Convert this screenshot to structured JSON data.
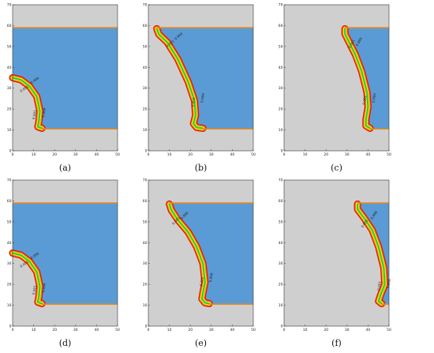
{
  "panels": [
    {
      "id": "a",
      "caption": "(a)",
      "curve": [
        [
          0,
          35
        ],
        [
          4,
          34
        ],
        [
          8,
          31
        ],
        [
          11.5,
          26
        ],
        [
          13,
          19
        ],
        [
          12.5,
          14
        ],
        [
          12,
          11.5
        ],
        [
          14,
          10.8
        ]
      ],
      "labels": [
        {
          "text": "0.999",
          "at": [
            9,
            32
          ],
          "rot": -35
        },
        {
          "text": "0.001",
          "at": [
            4,
            28
          ],
          "rot": -35
        },
        {
          "text": "0.999",
          "at": [
            15,
            16
          ],
          "rot": -80
        },
        {
          "text": "0.001",
          "at": [
            10.5,
            15
          ],
          "rot": -80
        }
      ]
    },
    {
      "id": "b",
      "caption": "(b)",
      "curve": [
        [
          4,
          58.5
        ],
        [
          5,
          55.8
        ],
        [
          9,
          52
        ],
        [
          14,
          44
        ],
        [
          19,
          33
        ],
        [
          22,
          24
        ],
        [
          22.5,
          17
        ],
        [
          21.5,
          13
        ],
        [
          23,
          11.2
        ],
        [
          26,
          10.8
        ]
      ],
      "labels": [
        {
          "text": "0.999",
          "at": [
            13,
            53
          ],
          "rot": -40
        },
        {
          "text": "0.001",
          "at": [
            9,
            49.5
          ],
          "rot": -40
        },
        {
          "text": "0.999",
          "at": [
            26,
            23
          ],
          "rot": -80
        },
        {
          "text": "0.001",
          "at": [
            21.5,
            21
          ],
          "rot": -80
        }
      ]
    },
    {
      "id": "c",
      "caption": "(c)",
      "curve": [
        [
          29,
          58.5
        ],
        [
          29,
          56
        ],
        [
          31,
          52
        ],
        [
          34,
          46
        ],
        [
          37,
          38
        ],
        [
          39.5,
          28
        ],
        [
          40,
          21
        ],
        [
          39,
          15
        ],
        [
          39,
          12
        ],
        [
          41,
          10.8
        ]
      ],
      "labels": [
        {
          "text": "0.999",
          "at": [
            35,
            50
          ],
          "rot": -60
        },
        {
          "text": "0.001",
          "at": [
            31.5,
            49
          ],
          "rot": -60
        },
        {
          "text": "0.999",
          "at": [
            43,
            23
          ],
          "rot": -80
        },
        {
          "text": "0.001",
          "at": [
            38.5,
            22
          ],
          "rot": -80
        }
      ]
    },
    {
      "id": "d",
      "caption": "(d)",
      "curve": [
        [
          0,
          35
        ],
        [
          4,
          34
        ],
        [
          8,
          31
        ],
        [
          11.5,
          26
        ],
        [
          13,
          19
        ],
        [
          12.5,
          14
        ],
        [
          12,
          11.5
        ],
        [
          14,
          10.8
        ]
      ],
      "labels": [
        {
          "text": "0.999",
          "at": [
            9,
            32
          ],
          "rot": -35
        },
        {
          "text": "0.001",
          "at": [
            4,
            28
          ],
          "rot": -35
        },
        {
          "text": "0.999",
          "at": [
            15,
            16
          ],
          "rot": -80
        },
        {
          "text": "0.001",
          "at": [
            10.5,
            15
          ],
          "rot": -80
        }
      ]
    },
    {
      "id": "e",
      "caption": "(e)",
      "curve": [
        [
          10,
          58.5
        ],
        [
          11,
          55.5
        ],
        [
          14,
          51
        ],
        [
          19,
          45
        ],
        [
          23,
          38
        ],
        [
          26,
          30
        ],
        [
          27,
          21
        ],
        [
          26,
          16
        ],
        [
          25.5,
          13
        ],
        [
          27,
          11.2
        ],
        [
          29,
          10.8
        ]
      ],
      "labels": [
        {
          "text": "0.999",
          "at": [
            16,
            51
          ],
          "rot": -45
        },
        {
          "text": "0.001",
          "at": [
            12,
            48.5
          ],
          "rot": -45
        },
        {
          "text": "0.999",
          "at": [
            30,
            21
          ],
          "rot": -80
        },
        {
          "text": "0.001",
          "at": [
            25.5,
            19
          ],
          "rot": -80
        }
      ]
    },
    {
      "id": "f",
      "caption": "(f)",
      "curve": [
        [
          35,
          58.5
        ],
        [
          35,
          56
        ],
        [
          38,
          52
        ],
        [
          42,
          46
        ],
        [
          45,
          38
        ],
        [
          47.5,
          28
        ],
        [
          48,
          20
        ],
        [
          46,
          15
        ],
        [
          45,
          12
        ],
        [
          46.5,
          10.8
        ]
      ],
      "labels": [
        {
          "text": "0.999",
          "at": [
            42,
            51
          ],
          "rot": -55
        },
        {
          "text": "0.001",
          "at": [
            37.5,
            47
          ],
          "rot": -55
        },
        {
          "text": "0.999",
          "at": [
            50,
            18
          ],
          "rot": -80
        },
        {
          "text": "0.001",
          "at": [
            45.5,
            17
          ],
          "rot": -80
        }
      ]
    }
  ],
  "axis": {
    "xticks": [
      0,
      10,
      20,
      30,
      40,
      50
    ],
    "yticks": [
      0,
      10,
      20,
      30,
      40,
      50,
      60,
      70
    ]
  },
  "colors": {
    "solid": "#cfcfcf",
    "liquid": "#5b9bd5",
    "edge_outer": "#e01010",
    "edge_mid": "#ff8c00",
    "edge_inner": "#f5e61a",
    "edge_green": "#27c93f",
    "plate": "#e88a1a"
  }
}
